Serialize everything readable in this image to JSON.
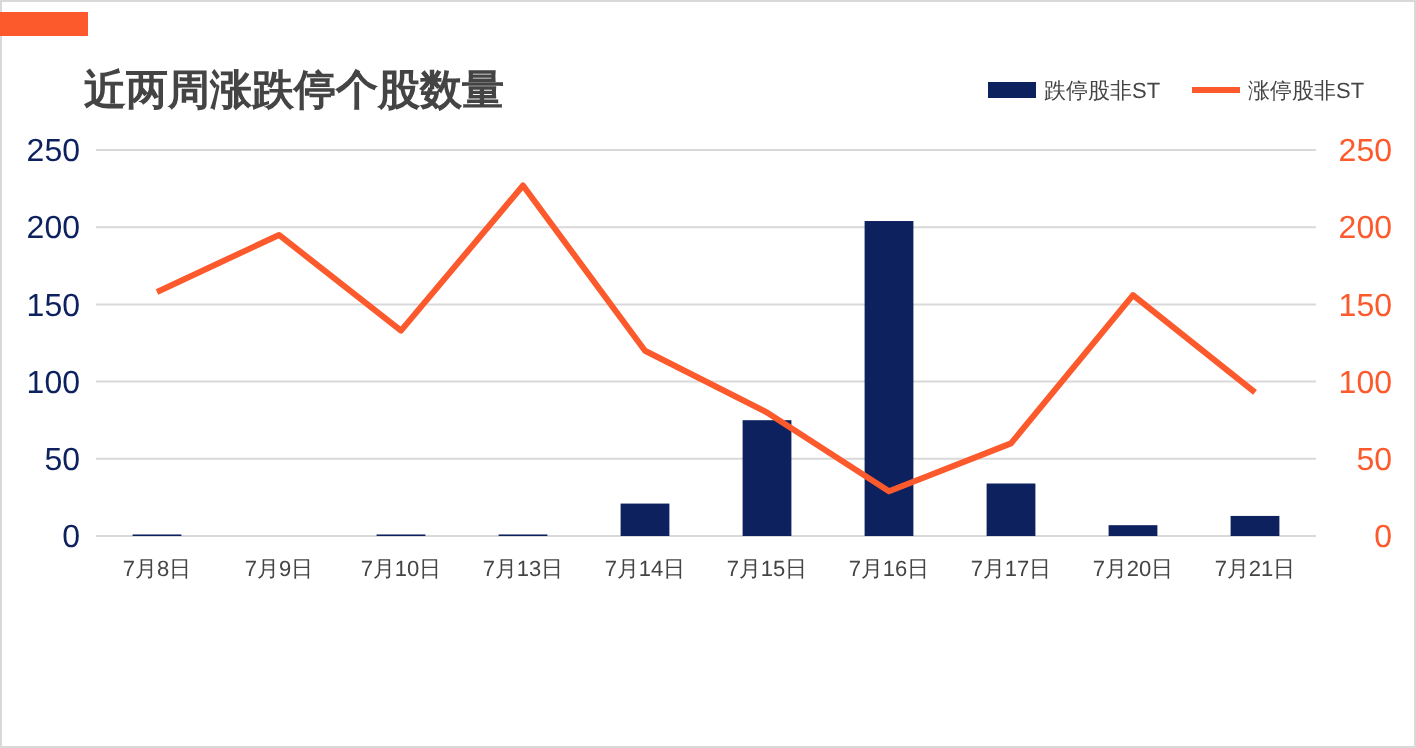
{
  "chart_data": {
    "type": "bar",
    "title": "近两周涨跌停个股数量",
    "categories": [
      "7月8日",
      "7月9日",
      "7月10日",
      "7月13日",
      "7月14日",
      "7月15日",
      "7月16日",
      "7月17日",
      "7月20日",
      "7月21日"
    ],
    "series": [
      {
        "name": "跌停股非ST",
        "color": "#0d215f",
        "values": [
          1,
          0,
          1,
          1,
          21,
          75,
          204,
          34,
          7,
          13
        ]
      },
      {
        "name": "涨停股非ST",
        "type": "line",
        "axis": "y2",
        "color": "#fc5a2c",
        "values": [
          158,
          195,
          133,
          227,
          120,
          80,
          29,
          60,
          156,
          93
        ]
      }
    ],
    "ylim": [
      0,
      250
    ],
    "yticks": [
      0,
      50,
      100,
      150,
      200,
      250
    ],
    "y2lim": [
      0,
      250
    ],
    "y2ticks": [
      0,
      50,
      100,
      150,
      200,
      250
    ],
    "grid": "y",
    "legend": "top right",
    "marker": "none",
    "line_style": "solid"
  }
}
